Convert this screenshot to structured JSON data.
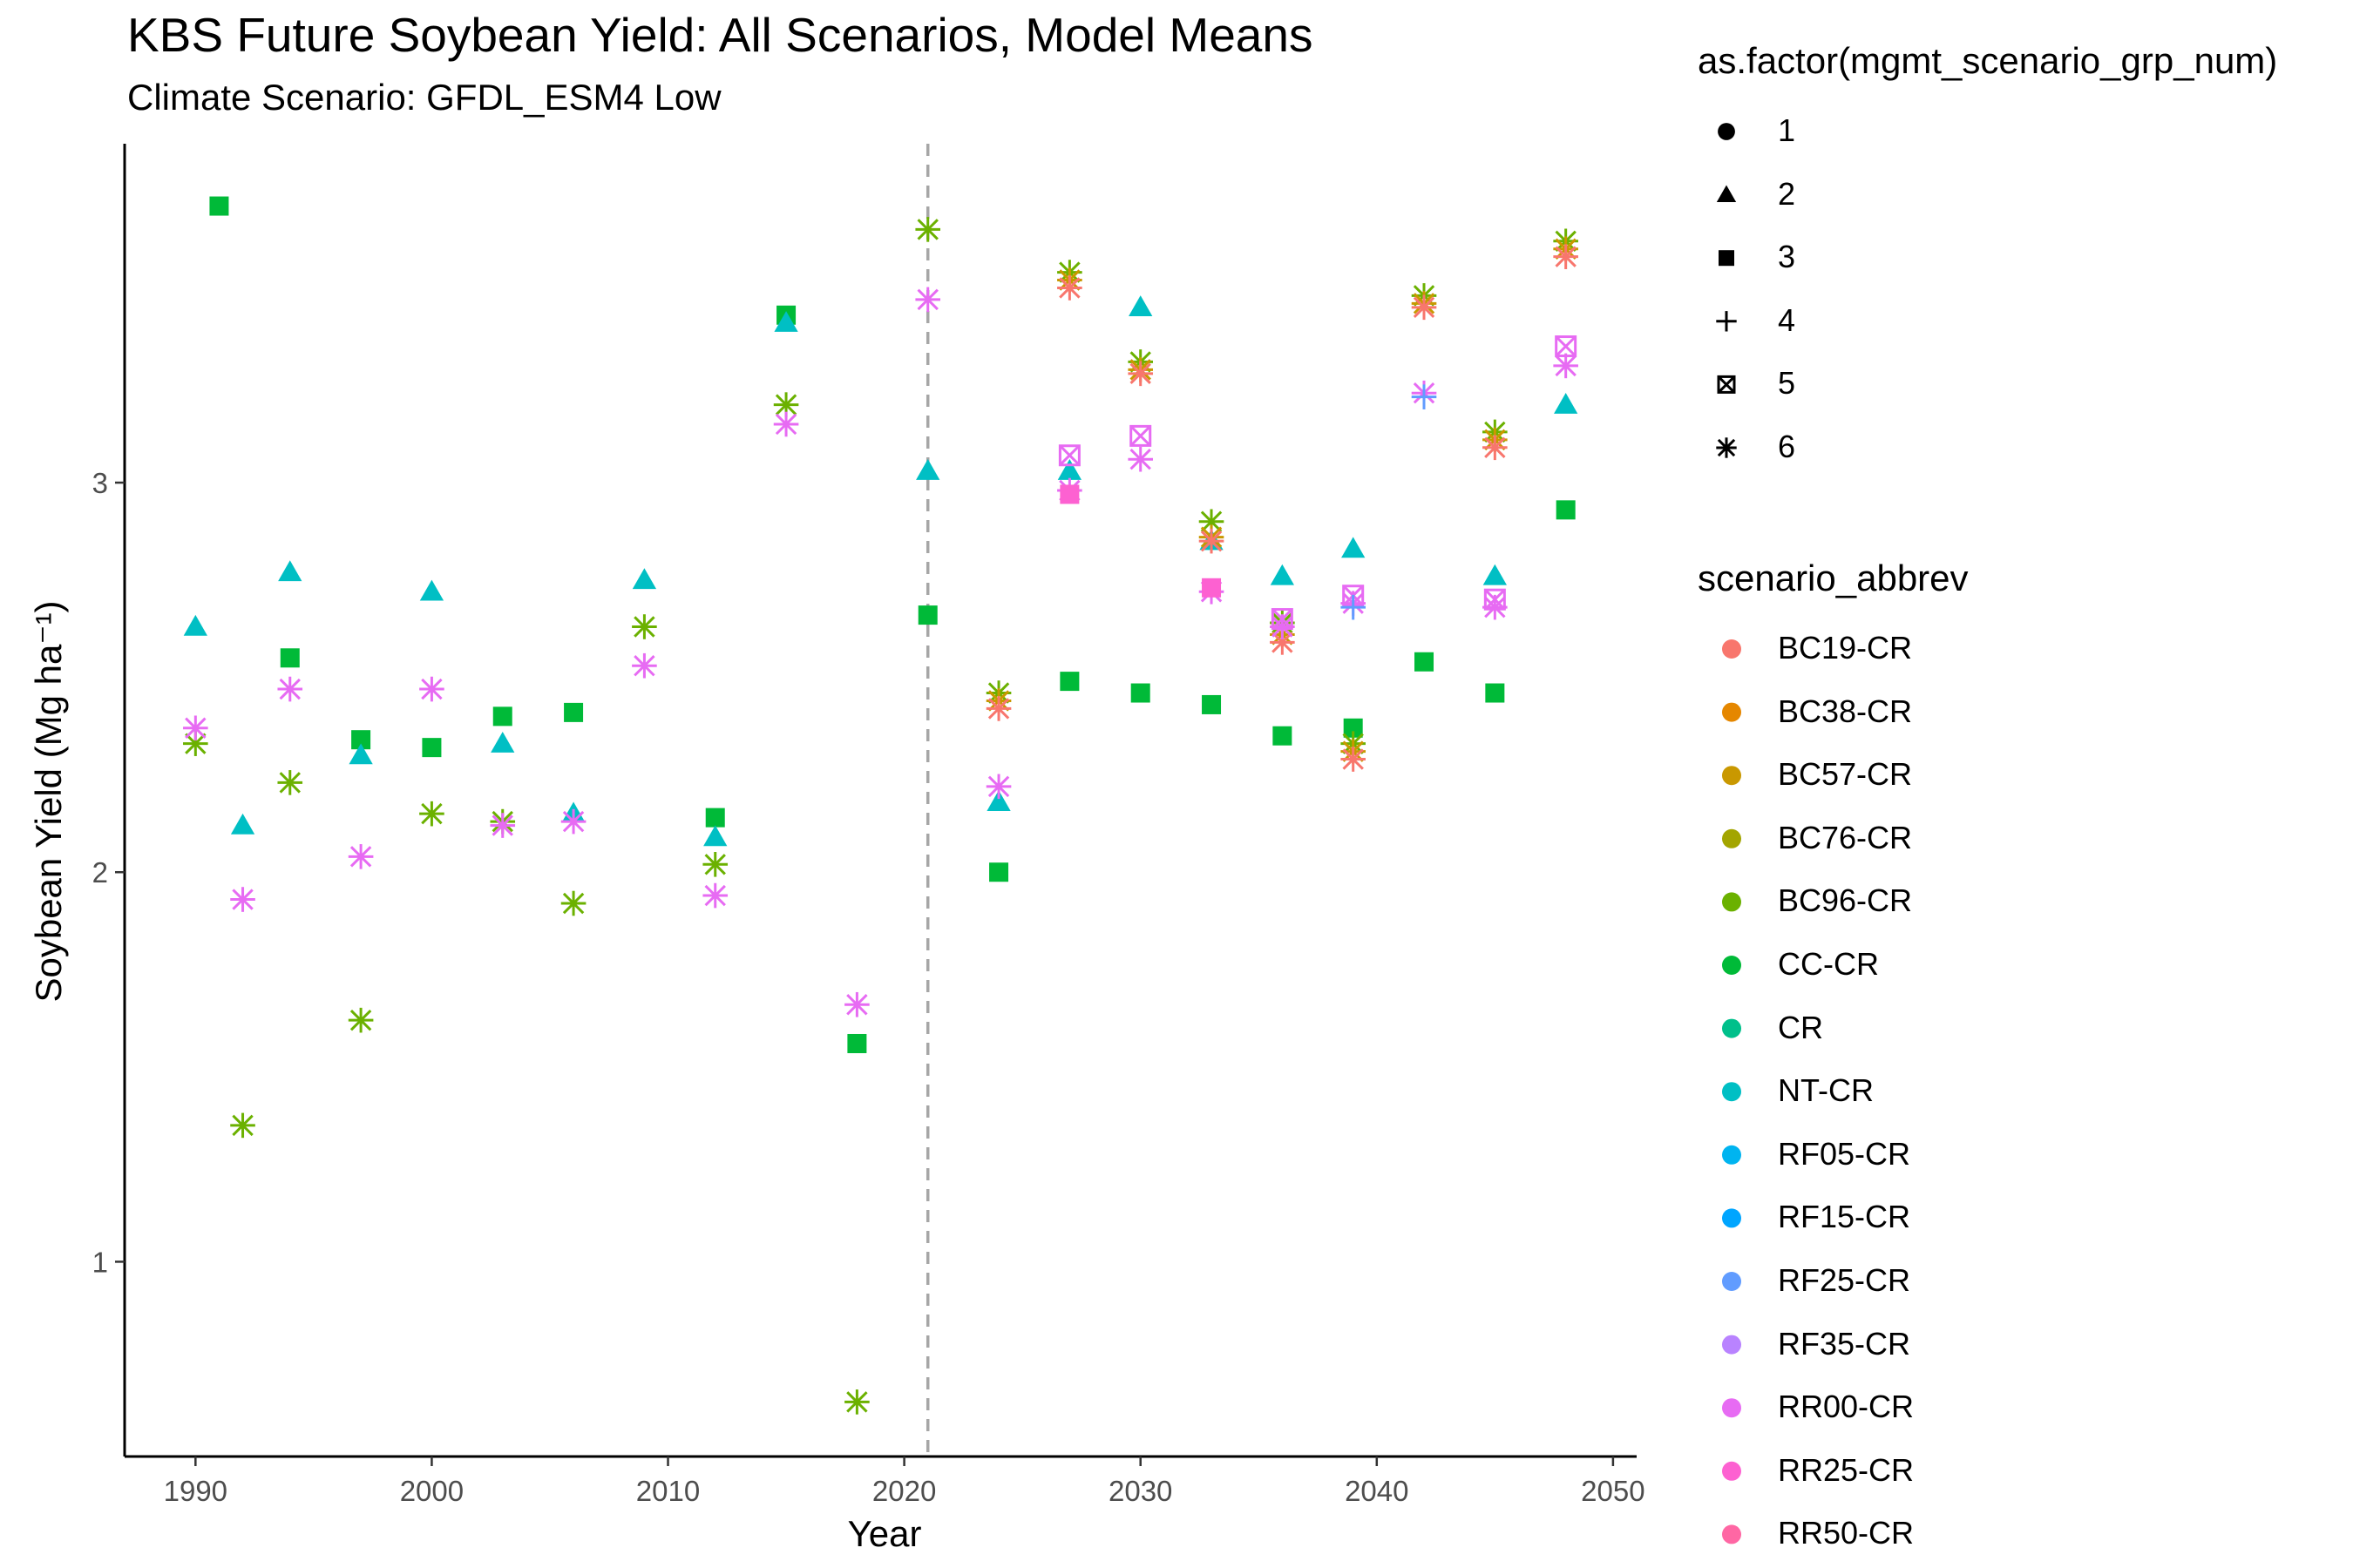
{
  "chart_data": {
    "type": "scatter",
    "title": "KBS Future Soybean Yield: All Scenarios, Model Means",
    "subtitle": "Climate Scenario: GFDL_ESM4 Low",
    "xlabel": "Year",
    "ylabel": "Soybean Yield (Mg ha⁻¹)",
    "xlim": [
      1987,
      2051
    ],
    "ylim": [
      0.5,
      3.87
    ],
    "x_ticks": [
      "1990",
      "2000",
      "2010",
      "2020",
      "2030",
      "2040",
      "2050"
    ],
    "y_ticks": [
      "1",
      "2",
      "3"
    ],
    "vline_x": 2021,
    "grid": false,
    "legend_placement": "right",
    "shape_legend": {
      "title": "as.factor(mgmt_scenario_grp_num)",
      "entries": [
        {
          "label": "1",
          "shape": "circle"
        },
        {
          "label": "2",
          "shape": "triangle"
        },
        {
          "label": "3",
          "shape": "square"
        },
        {
          "label": "4",
          "shape": "plus"
        },
        {
          "label": "5",
          "shape": "boxx"
        },
        {
          "label": "6",
          "shape": "asterisk"
        }
      ]
    },
    "color_legend": {
      "title": "scenario_abbrev",
      "entries": [
        {
          "label": "BC19-CR",
          "color": "#F8766D"
        },
        {
          "label": "BC38-CR",
          "color": "#E58700"
        },
        {
          "label": "BC57-CR",
          "color": "#C99800"
        },
        {
          "label": "BC76-CR",
          "color": "#A3A500"
        },
        {
          "label": "BC96-CR",
          "color": "#6BB100"
        },
        {
          "label": "CC-CR",
          "color": "#00BA38"
        },
        {
          "label": "CR",
          "color": "#00C08B"
        },
        {
          "label": "NT-CR",
          "color": "#00BFC4"
        },
        {
          "label": "RF05-CR",
          "color": "#00B4F0"
        },
        {
          "label": "RF15-CR",
          "color": "#00A5FF"
        },
        {
          "label": "RF25-CR",
          "color": "#619CFF"
        },
        {
          "label": "RF35-CR",
          "color": "#B983FF"
        },
        {
          "label": "RR00-CR",
          "color": "#E76BF3"
        },
        {
          "label": "RR25-CR",
          "color": "#FD61D1"
        },
        {
          "label": "RR50-CR",
          "color": "#FF67A4"
        }
      ]
    },
    "series": [
      {
        "scenario": "CC-CR",
        "shape": "square",
        "color": "#00BA38",
        "x": [
          1991,
          1994,
          1997,
          2000,
          2003,
          2006,
          2012,
          2015,
          2018,
          2021,
          2024,
          2027,
          2030,
          2033,
          2036,
          2039,
          2042,
          2045,
          2048
        ],
        "y": [
          3.71,
          2.55,
          2.34,
          2.32,
          2.4,
          2.41,
          2.14,
          3.43,
          1.56,
          2.66,
          2.0,
          2.49,
          2.46,
          2.43,
          2.35,
          2.37,
          2.54,
          2.46,
          2.93
        ]
      },
      {
        "scenario": "NT-CR",
        "shape": "triangle",
        "color": "#00BFC4",
        "x": [
          1990,
          1992,
          1994,
          1997,
          2000,
          2003,
          2006,
          2009,
          2012,
          2015,
          2021,
          2024,
          2027,
          2030,
          2033,
          2036,
          2039,
          2045,
          2048
        ],
        "y": [
          2.63,
          2.12,
          2.77,
          2.3,
          2.72,
          2.33,
          2.15,
          2.75,
          2.09,
          3.41,
          3.03,
          2.18,
          3.03,
          3.45,
          2.85,
          2.76,
          2.83,
          2.76,
          3.2
        ]
      },
      {
        "scenario": "BC96-CR",
        "shape": "asterisk",
        "color": "#6BB100",
        "x": [
          1990,
          1992,
          1994,
          1997,
          2000,
          2003,
          2006,
          2009,
          2012,
          2015,
          2018,
          2021,
          2024,
          2027,
          2030,
          2033,
          2036,
          2039,
          2042,
          2045,
          2048
        ],
        "y": [
          2.33,
          1.35,
          2.23,
          1.62,
          2.15,
          2.13,
          1.92,
          2.63,
          2.02,
          3.2,
          0.64,
          3.65,
          2.46,
          3.54,
          3.31,
          2.9,
          2.64,
          2.33,
          3.48,
          3.13,
          3.62
        ]
      },
      {
        "scenario": "BC57-CR",
        "shape": "asterisk",
        "color": "#C99800",
        "x": [
          2024,
          2027,
          2030,
          2033,
          2036,
          2039,
          2042,
          2045,
          2048
        ],
        "y": [
          2.44,
          3.52,
          3.29,
          2.86,
          2.61,
          2.31,
          3.46,
          3.11,
          3.6
        ]
      },
      {
        "scenario": "BC19-CR",
        "shape": "asterisk",
        "color": "#F8766D",
        "x": [
          2024,
          2027,
          2030,
          2033,
          2036,
          2039,
          2042,
          2045,
          2048
        ],
        "y": [
          2.42,
          3.5,
          3.28,
          2.85,
          2.59,
          2.29,
          3.45,
          3.09,
          3.58
        ]
      },
      {
        "scenario": "RR00-CR",
        "shape": "asterisk",
        "color": "#E76BF3",
        "x": [
          1990,
          1992,
          1994,
          1997,
          2000,
          2003,
          2006,
          2009,
          2012,
          2015,
          2018,
          2021,
          2024,
          2027,
          2030,
          2033,
          2036,
          2039,
          2042,
          2045,
          2048
        ],
        "y": [
          2.37,
          1.93,
          2.47,
          2.04,
          2.47,
          2.12,
          2.13,
          2.53,
          1.94,
          3.15,
          1.66,
          3.47,
          2.22,
          2.98,
          3.06,
          2.72,
          2.63,
          2.69,
          3.23,
          2.68,
          3.3
        ]
      },
      {
        "scenario": "RR00-CR",
        "shape": "boxx",
        "color": "#E76BF3",
        "x": [
          2027,
          2030,
          2036,
          2039,
          2045,
          2048
        ],
        "y": [
          3.07,
          3.12,
          2.65,
          2.71,
          2.7,
          3.35
        ]
      },
      {
        "scenario": "RR25-CR",
        "shape": "square",
        "color": "#FD61D1",
        "x": [
          2027,
          2033
        ],
        "y": [
          2.97,
          2.73
        ]
      },
      {
        "scenario": "RF25-CR",
        "shape": "plus",
        "color": "#619CFF",
        "x": [
          2039,
          2042
        ],
        "y": [
          2.68,
          3.22
        ]
      }
    ]
  }
}
